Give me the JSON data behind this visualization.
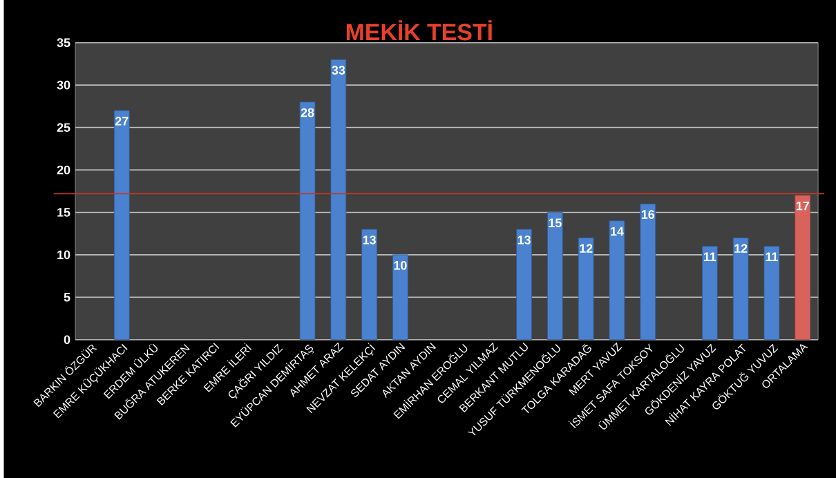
{
  "chart_data": {
    "type": "bar",
    "title": "MEKİK TESTİ",
    "categories": [
      "BARKIN ÖZGÜR",
      "EMRE KÜÇÜKHACI",
      "ERDEM ÜLKÜ",
      "BUĞRA ATUKEREN",
      "BERKE KATIRCI",
      "EMRE İLERİ",
      "ÇAĞRI YILDIZ",
      "EYÜPCAN DEMİRTAŞ",
      "AHMET ARAZ",
      "NEVZAT KELEKÇİ",
      "SEDAT AYDIN",
      "AKTAN AYDIN",
      "EMİRHAN EROĞLU",
      "CEMAL YILMAZ",
      "BERKANT MUTLU",
      "YUSUF TÜRKMENOĞLU",
      "TOLGA KARADAĞ",
      "MERT YAVUZ",
      "İSMET SAFA TOKSOY",
      "ÜMMET KARTALOĞLU",
      "GÖKDENİZ YAVUZ",
      "NİHAT KAYRA POLAT",
      "GÖKTUĞ YUVUZ",
      "ORTALAMA"
    ],
    "values": [
      null,
      27,
      null,
      null,
      null,
      null,
      null,
      28,
      33,
      13,
      10,
      null,
      null,
      null,
      13,
      15,
      12,
      14,
      16,
      null,
      11,
      12,
      11,
      17
    ],
    "colors": [
      "#4a82d0",
      "#4a82d0",
      "#4a82d0",
      "#4a82d0",
      "#4a82d0",
      "#4a82d0",
      "#4a82d0",
      "#4a82d0",
      "#4a82d0",
      "#4a82d0",
      "#4a82d0",
      "#4a82d0",
      "#4a82d0",
      "#4a82d0",
      "#4a82d0",
      "#4a82d0",
      "#4a82d0",
      "#4a82d0",
      "#4a82d0",
      "#4a82d0",
      "#4a82d0",
      "#4a82d0",
      "#4a82d0",
      "#d9635c"
    ],
    "ylim": [
      0,
      35
    ],
    "yticks": [
      0,
      5,
      10,
      15,
      20,
      25,
      30,
      35
    ],
    "grid": "y",
    "data_labels": true,
    "ref_lines": [
      {
        "axis": "y",
        "value": 17.2,
        "color": "#c0392b"
      }
    ]
  }
}
